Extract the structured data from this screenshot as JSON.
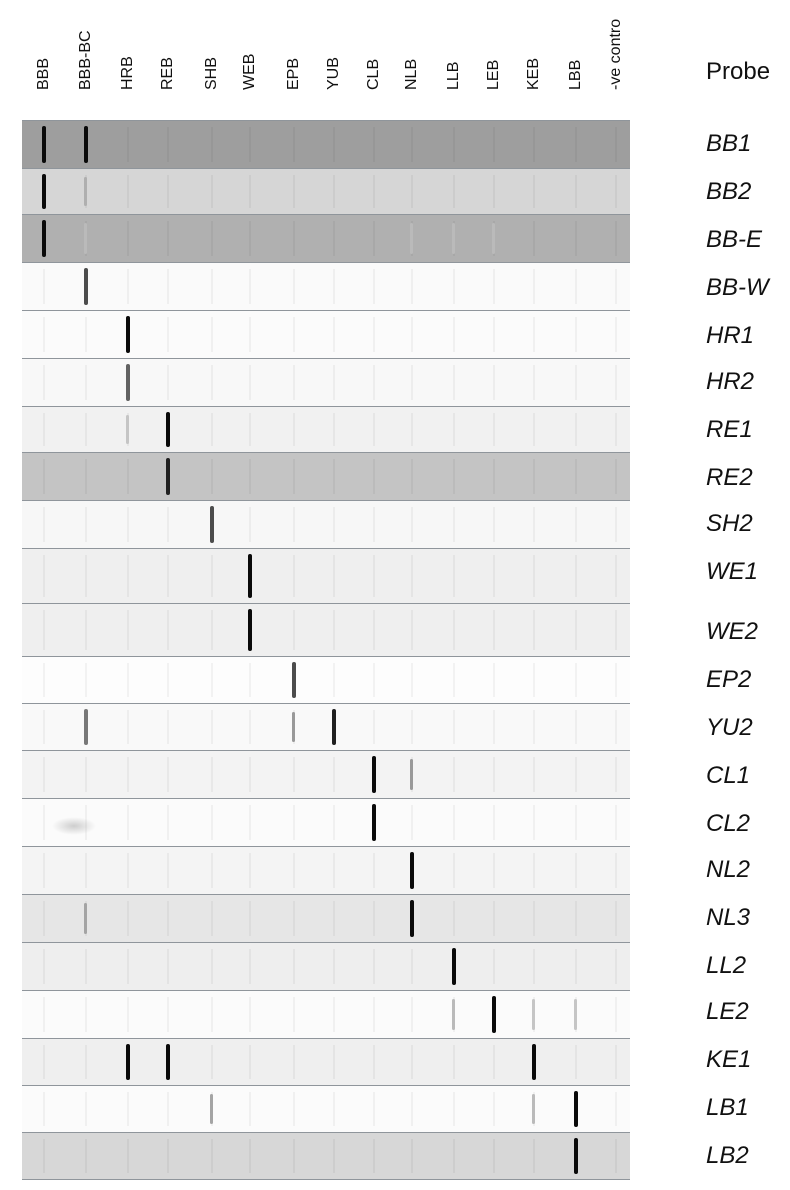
{
  "header": {
    "probe": "Probe"
  },
  "columns": [
    "BBB",
    "BBB-BC",
    "HRB",
    "REB",
    "SHB",
    "WEB",
    "EPB",
    "YUB",
    "CLB",
    "NLB",
    "LLB",
    "LEB",
    "KEB",
    "LBB",
    "-ve contro"
  ],
  "strips": [
    {
      "probe": "BB1",
      "bg": "#9e9e9e",
      "bands": [
        {
          "lane": 0,
          "level": 1
        },
        {
          "lane": 1,
          "level": 1
        }
      ]
    },
    {
      "probe": "BB2",
      "bg": "#d6d6d6",
      "bands": [
        {
          "lane": 0,
          "level": 1
        },
        {
          "lane": 1,
          "level": 0.25
        }
      ]
    },
    {
      "probe": "BB-E",
      "bg": "#b0b0b0",
      "bands": [
        {
          "lane": 0,
          "level": 1
        },
        {
          "lane": 1,
          "level": 0.2
        },
        {
          "lane": 9,
          "level": 0.2
        },
        {
          "lane": 10,
          "level": 0.2
        },
        {
          "lane": 11,
          "level": 0.2
        }
      ]
    },
    {
      "probe": "BB-W",
      "bg": "#fafafa",
      "bands": [
        {
          "lane": 1,
          "level": 0.7
        }
      ]
    },
    {
      "probe": "HR1",
      "bg": "#fbfbfb",
      "bands": [
        {
          "lane": 2,
          "level": 1
        }
      ]
    },
    {
      "probe": "HR2",
      "bg": "#f8f8f8",
      "bands": [
        {
          "lane": 2,
          "level": 0.6
        }
      ]
    },
    {
      "probe": "RE1",
      "bg": "#f1f1f1",
      "bands": [
        {
          "lane": 2,
          "level": 0.15
        },
        {
          "lane": 3,
          "level": 1
        }
      ]
    },
    {
      "probe": "RE2",
      "bg": "#c4c4c4",
      "bands": [
        {
          "lane": 3,
          "level": 0.9
        }
      ]
    },
    {
      "probe": "SH2",
      "bg": "#f7f7f7",
      "bands": [
        {
          "lane": 4,
          "level": 0.7
        }
      ]
    },
    {
      "probe": "WE1",
      "bg": "#efefef",
      "bands": [
        {
          "lane": 5,
          "level": 1
        }
      ]
    },
    {
      "probe": "WE2",
      "bg": "#efefef",
      "bands": [
        {
          "lane": 5,
          "level": 1
        }
      ]
    },
    {
      "probe": "EP2",
      "bg": "#fdfdfd",
      "bands": [
        {
          "lane": 6,
          "level": 0.7
        }
      ]
    },
    {
      "probe": "YU2",
      "bg": "#f9f9f9",
      "bands": [
        {
          "lane": 1,
          "level": 0.5
        },
        {
          "lane": 6,
          "level": 0.35
        },
        {
          "lane": 7,
          "level": 0.9
        }
      ]
    },
    {
      "probe": "CL1",
      "bg": "#f3f3f3",
      "bands": [
        {
          "lane": 8,
          "level": 1
        },
        {
          "lane": 9,
          "level": 0.35
        }
      ]
    },
    {
      "probe": "CL2",
      "bg": "#fbfbfb",
      "bands": [
        {
          "lane": 8,
          "level": 1
        }
      ]
    },
    {
      "probe": "NL2",
      "bg": "#f4f4f4",
      "bands": [
        {
          "lane": 9,
          "level": 1
        }
      ]
    },
    {
      "probe": "NL3",
      "bg": "#e6e6e6",
      "bands": [
        {
          "lane": 1,
          "level": 0.3
        },
        {
          "lane": 9,
          "level": 1
        }
      ]
    },
    {
      "probe": "LL2",
      "bg": "#eeeeee",
      "bands": [
        {
          "lane": 10,
          "level": 1
        }
      ]
    },
    {
      "probe": "LE2",
      "bg": "#fbfbfb",
      "bands": [
        {
          "lane": 10,
          "level": 0.2
        },
        {
          "lane": 11,
          "level": 1
        },
        {
          "lane": 12,
          "level": 0.15
        },
        {
          "lane": 13,
          "level": 0.15
        }
      ]
    },
    {
      "probe": "KE1",
      "bg": "#efefef",
      "bands": [
        {
          "lane": 2,
          "level": 1
        },
        {
          "lane": 3,
          "level": 1
        },
        {
          "lane": 12,
          "level": 1
        }
      ]
    },
    {
      "probe": "LB1",
      "bg": "#fbfbfb",
      "bands": [
        {
          "lane": 4,
          "level": 0.3
        },
        {
          "lane": 12,
          "level": 0.2
        },
        {
          "lane": 13,
          "level": 1
        }
      ]
    },
    {
      "probe": "LB2",
      "bg": "#d7d7d7",
      "bands": [
        {
          "lane": 13,
          "level": 1
        }
      ]
    }
  ]
}
